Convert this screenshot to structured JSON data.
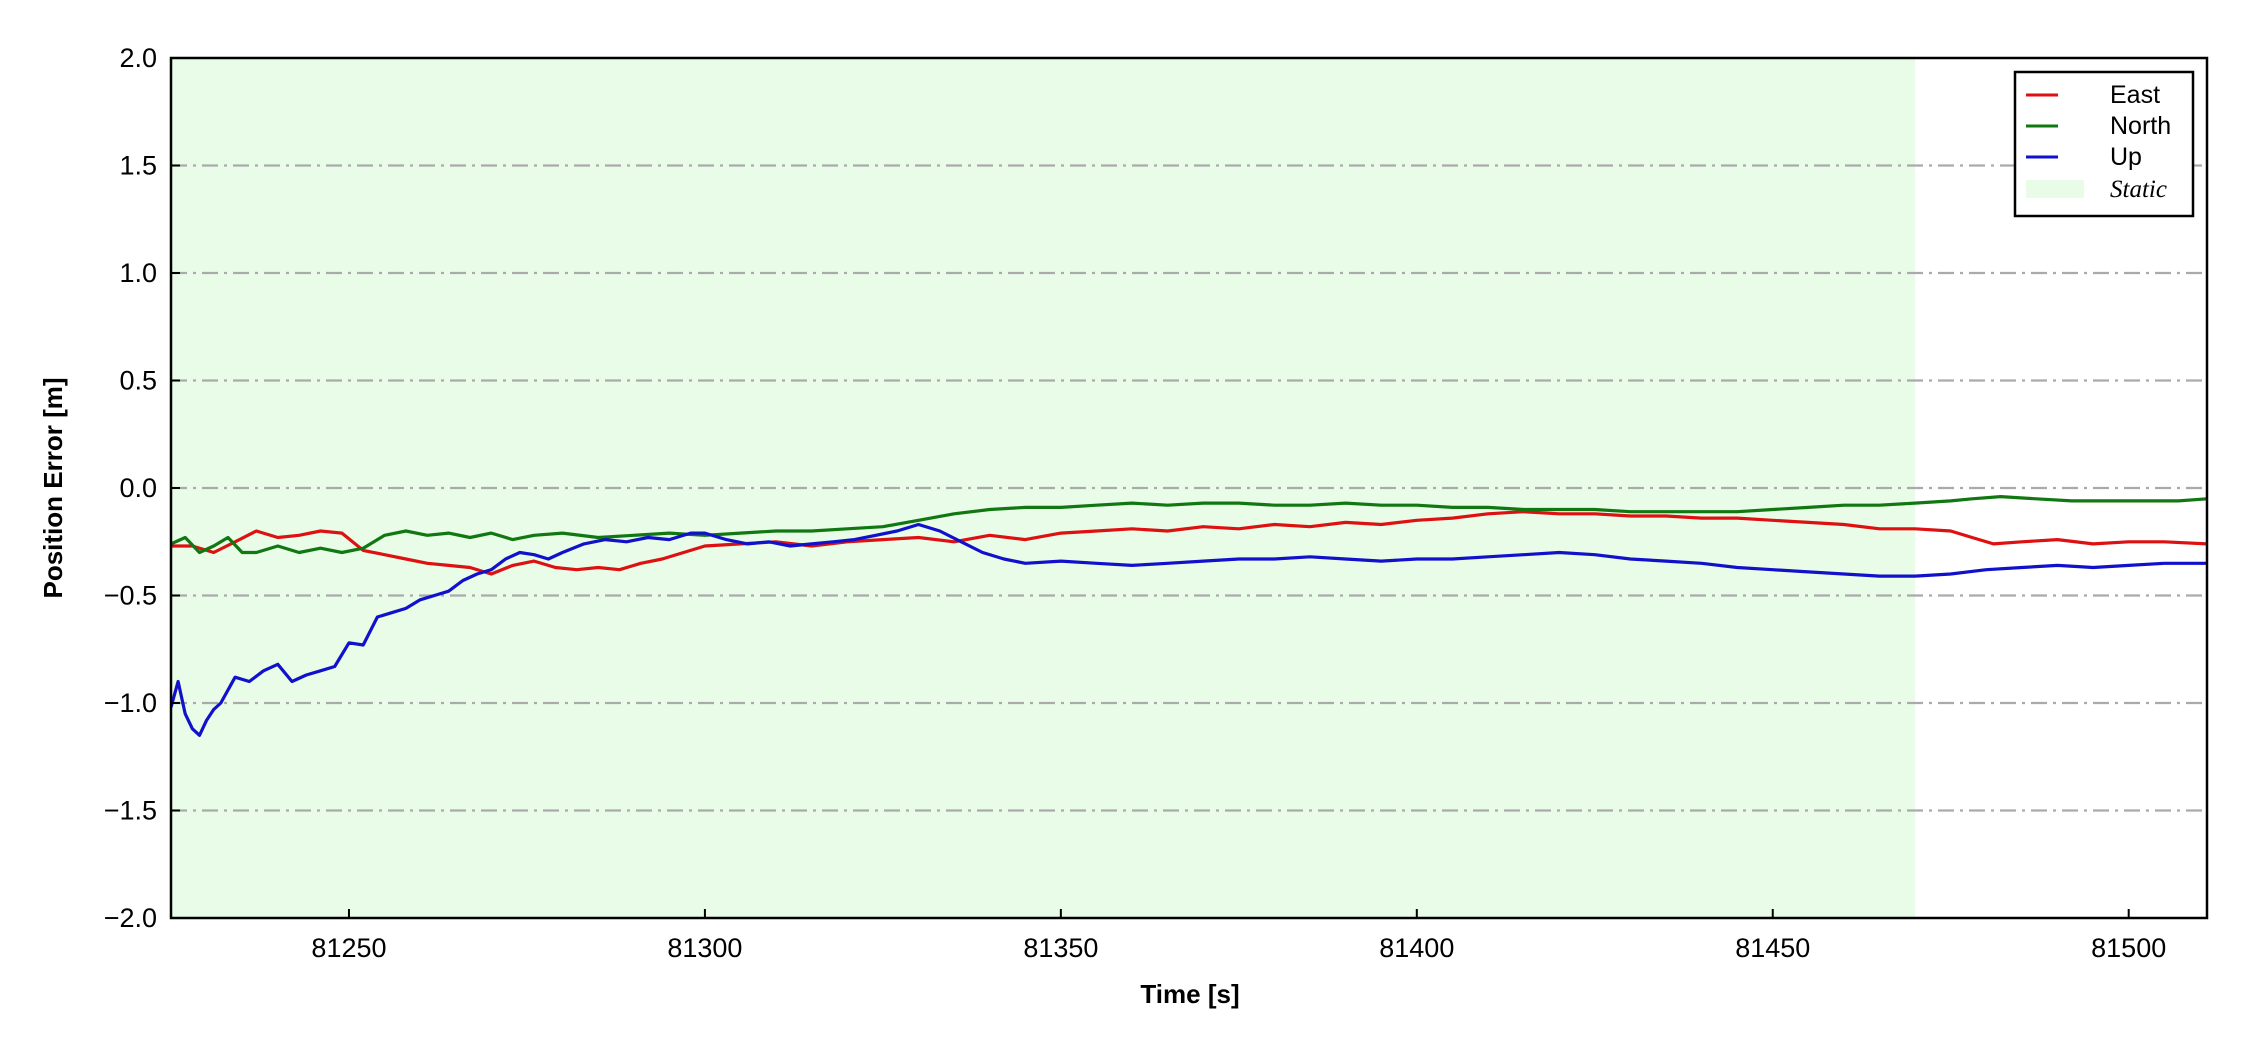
{
  "chart_data": {
    "type": "line",
    "title": "",
    "xlabel": "Time [s]",
    "ylabel": "Position Error [m]",
    "xlim": [
      81225,
      81511
    ],
    "ylim": [
      -2.0,
      2.0
    ],
    "xticks": [
      81250,
      81300,
      81350,
      81400,
      81450,
      81500
    ],
    "xtick_labels": [
      "81250",
      "81300",
      "81350",
      "81400",
      "81450",
      "81500"
    ],
    "yticks": [
      2.0,
      1.5,
      1.0,
      0.5,
      0.0,
      -0.5,
      -1.0,
      -1.5,
      -2.0
    ],
    "ytick_labels": [
      "2.0",
      "1.5",
      "1.0",
      "0.5",
      "0.0",
      "−0.5",
      "−1.0",
      "−1.5",
      "−2.0"
    ],
    "grid": "horizontal dash-dot",
    "legend_position": "top-right",
    "shaded_region": {
      "name": "Static",
      "x_start": 81225,
      "x_end": 81470,
      "color": "#e8fce8"
    },
    "series": [
      {
        "name": "East",
        "color": "#dd1111",
        "x": [
          81225,
          81228,
          81231,
          81234,
          81237,
          81240,
          81243,
          81246,
          81249,
          81252,
          81255,
          81258,
          81261,
          81264,
          81267,
          81270,
          81273,
          81276,
          81279,
          81282,
          81285,
          81288,
          81291,
          81294,
          81297,
          81300,
          81305,
          81310,
          81315,
          81320,
          81325,
          81330,
          81335,
          81340,
          81345,
          81350,
          81355,
          81360,
          81365,
          81370,
          81375,
          81380,
          81385,
          81390,
          81395,
          81400,
          81405,
          81410,
          81415,
          81420,
          81425,
          81430,
          81435,
          81440,
          81445,
          81450,
          81455,
          81460,
          81465,
          81470,
          81475,
          81478,
          81481,
          81485,
          81490,
          81495,
          81500,
          81505,
          81511
        ],
        "y": [
          -0.27,
          -0.27,
          -0.3,
          -0.25,
          -0.2,
          -0.23,
          -0.22,
          -0.2,
          -0.21,
          -0.29,
          -0.31,
          -0.33,
          -0.35,
          -0.36,
          -0.37,
          -0.4,
          -0.36,
          -0.34,
          -0.37,
          -0.38,
          -0.37,
          -0.38,
          -0.35,
          -0.33,
          -0.3,
          -0.27,
          -0.26,
          -0.25,
          -0.27,
          -0.25,
          -0.24,
          -0.23,
          -0.25,
          -0.22,
          -0.24,
          -0.21,
          -0.2,
          -0.19,
          -0.2,
          -0.18,
          -0.19,
          -0.17,
          -0.18,
          -0.16,
          -0.17,
          -0.15,
          -0.14,
          -0.12,
          -0.11,
          -0.12,
          -0.12,
          -0.13,
          -0.13,
          -0.14,
          -0.14,
          -0.15,
          -0.16,
          -0.17,
          -0.19,
          -0.19,
          -0.2,
          -0.23,
          -0.26,
          -0.25,
          -0.24,
          -0.26,
          -0.25,
          -0.25,
          -0.26
        ]
      },
      {
        "name": "North",
        "color": "#117711",
        "x": [
          81225,
          81227,
          81229,
          81231,
          81233,
          81235,
          81237,
          81240,
          81243,
          81246,
          81249,
          81252,
          81255,
          81258,
          81261,
          81264,
          81267,
          81270,
          81273,
          81276,
          81280,
          81285,
          81290,
          81295,
          81300,
          81305,
          81310,
          81315,
          81320,
          81325,
          81330,
          81335,
          81340,
          81345,
          81350,
          81355,
          81360,
          81365,
          81370,
          81375,
          81380,
          81385,
          81390,
          81395,
          81400,
          81405,
          81410,
          81415,
          81420,
          81425,
          81430,
          81435,
          81440,
          81445,
          81450,
          81455,
          81460,
          81465,
          81470,
          81475,
          81478,
          81482,
          81487,
          81492,
          81497,
          81502,
          81507,
          81511
        ],
        "y": [
          -0.26,
          -0.23,
          -0.3,
          -0.27,
          -0.23,
          -0.3,
          -0.3,
          -0.27,
          -0.3,
          -0.28,
          -0.3,
          -0.28,
          -0.22,
          -0.2,
          -0.22,
          -0.21,
          -0.23,
          -0.21,
          -0.24,
          -0.22,
          -0.21,
          -0.23,
          -0.22,
          -0.21,
          -0.22,
          -0.21,
          -0.2,
          -0.2,
          -0.19,
          -0.18,
          -0.15,
          -0.12,
          -0.1,
          -0.09,
          -0.09,
          -0.08,
          -0.07,
          -0.08,
          -0.07,
          -0.07,
          -0.08,
          -0.08,
          -0.07,
          -0.08,
          -0.08,
          -0.09,
          -0.09,
          -0.1,
          -0.1,
          -0.1,
          -0.11,
          -0.11,
          -0.11,
          -0.11,
          -0.1,
          -0.09,
          -0.08,
          -0.08,
          -0.07,
          -0.06,
          -0.05,
          -0.04,
          -0.05,
          -0.06,
          -0.06,
          -0.06,
          -0.06,
          -0.05
        ]
      },
      {
        "name": "Up",
        "color": "#1111cc",
        "x": [
          81225,
          81226,
          81227,
          81228,
          81229,
          81230,
          81231,
          81232,
          81234,
          81236,
          81238,
          81240,
          81242,
          81244,
          81246,
          81248,
          81250,
          81252,
          81254,
          81256,
          81258,
          81260,
          81262,
          81264,
          81266,
          81268,
          81270,
          81272,
          81274,
          81276,
          81278,
          81280,
          81283,
          81286,
          81289,
          81292,
          81295,
          81298,
          81300,
          81303,
          81306,
          81309,
          81312,
          81315,
          81318,
          81321,
          81324,
          81327,
          81330,
          81333,
          81336,
          81339,
          81342,
          81345,
          81350,
          81355,
          81360,
          81365,
          81370,
          81375,
          81380,
          81385,
          81390,
          81395,
          81400,
          81405,
          81410,
          81415,
          81420,
          81425,
          81430,
          81435,
          81440,
          81445,
          81450,
          81455,
          81460,
          81465,
          81470,
          81475,
          81480,
          81485,
          81490,
          81495,
          81500,
          81505,
          81511
        ],
        "y": [
          -1.02,
          -0.9,
          -1.05,
          -1.12,
          -1.15,
          -1.08,
          -1.03,
          -1.0,
          -0.88,
          -0.9,
          -0.85,
          -0.82,
          -0.9,
          -0.87,
          -0.85,
          -0.83,
          -0.72,
          -0.73,
          -0.6,
          -0.58,
          -0.56,
          -0.52,
          -0.5,
          -0.48,
          -0.43,
          -0.4,
          -0.38,
          -0.33,
          -0.3,
          -0.31,
          -0.33,
          -0.3,
          -0.26,
          -0.24,
          -0.25,
          -0.23,
          -0.24,
          -0.21,
          -0.21,
          -0.24,
          -0.26,
          -0.25,
          -0.27,
          -0.26,
          -0.25,
          -0.24,
          -0.22,
          -0.2,
          -0.17,
          -0.2,
          -0.25,
          -0.3,
          -0.33,
          -0.35,
          -0.34,
          -0.35,
          -0.36,
          -0.35,
          -0.34,
          -0.33,
          -0.33,
          -0.32,
          -0.33,
          -0.34,
          -0.33,
          -0.33,
          -0.32,
          -0.31,
          -0.3,
          -0.31,
          -0.33,
          -0.34,
          -0.35,
          -0.37,
          -0.38,
          -0.39,
          -0.4,
          -0.41,
          -0.41,
          -0.4,
          -0.38,
          -0.37,
          -0.36,
          -0.37,
          -0.36,
          -0.35,
          -0.35
        ]
      }
    ]
  }
}
